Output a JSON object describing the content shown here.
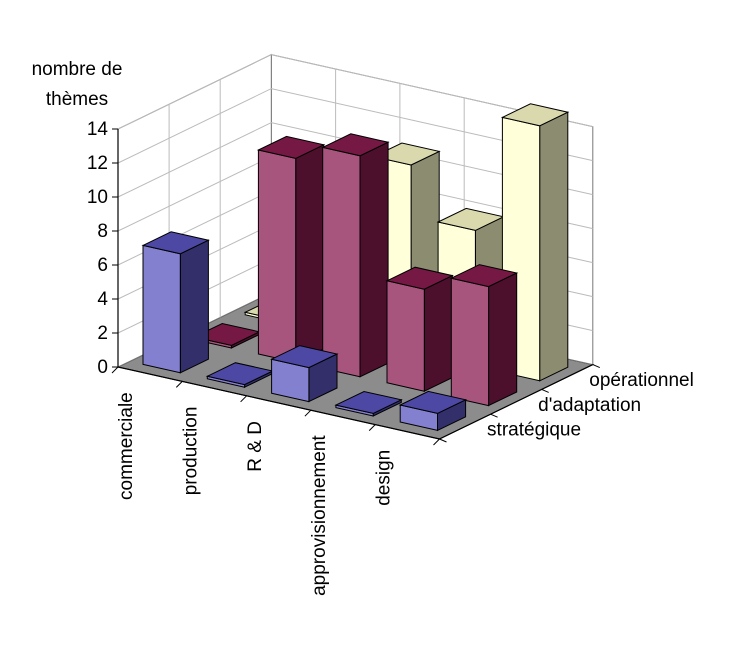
{
  "chart_data": {
    "type": "bar",
    "subtype": "3d-clustered-bar",
    "title": "",
    "ylabel": "nombre de thèmes",
    "ylabel_lines": [
      "nombre de",
      "thèmes"
    ],
    "xlabel": "",
    "ylim": [
      0,
      14
    ],
    "yticks": [
      "0",
      "2",
      "4",
      "6",
      "8",
      "10",
      "12",
      "14"
    ],
    "grid": true,
    "categories": [
      "commerciale",
      "production",
      "R & D",
      "approvisionnement",
      "design"
    ],
    "series": [
      {
        "name": "stratégique",
        "values": [
          7,
          0,
          2,
          0,
          1
        ],
        "color": "#5a55c0"
      },
      {
        "name": "d'adaptation",
        "values": [
          0,
          12,
          13,
          6,
          7
        ],
        "color": "#8a1c50"
      },
      {
        "name": "opérationnel",
        "values": [
          0,
          0,
          11,
          8,
          15
        ],
        "color": "#ffffcc"
      }
    ]
  }
}
